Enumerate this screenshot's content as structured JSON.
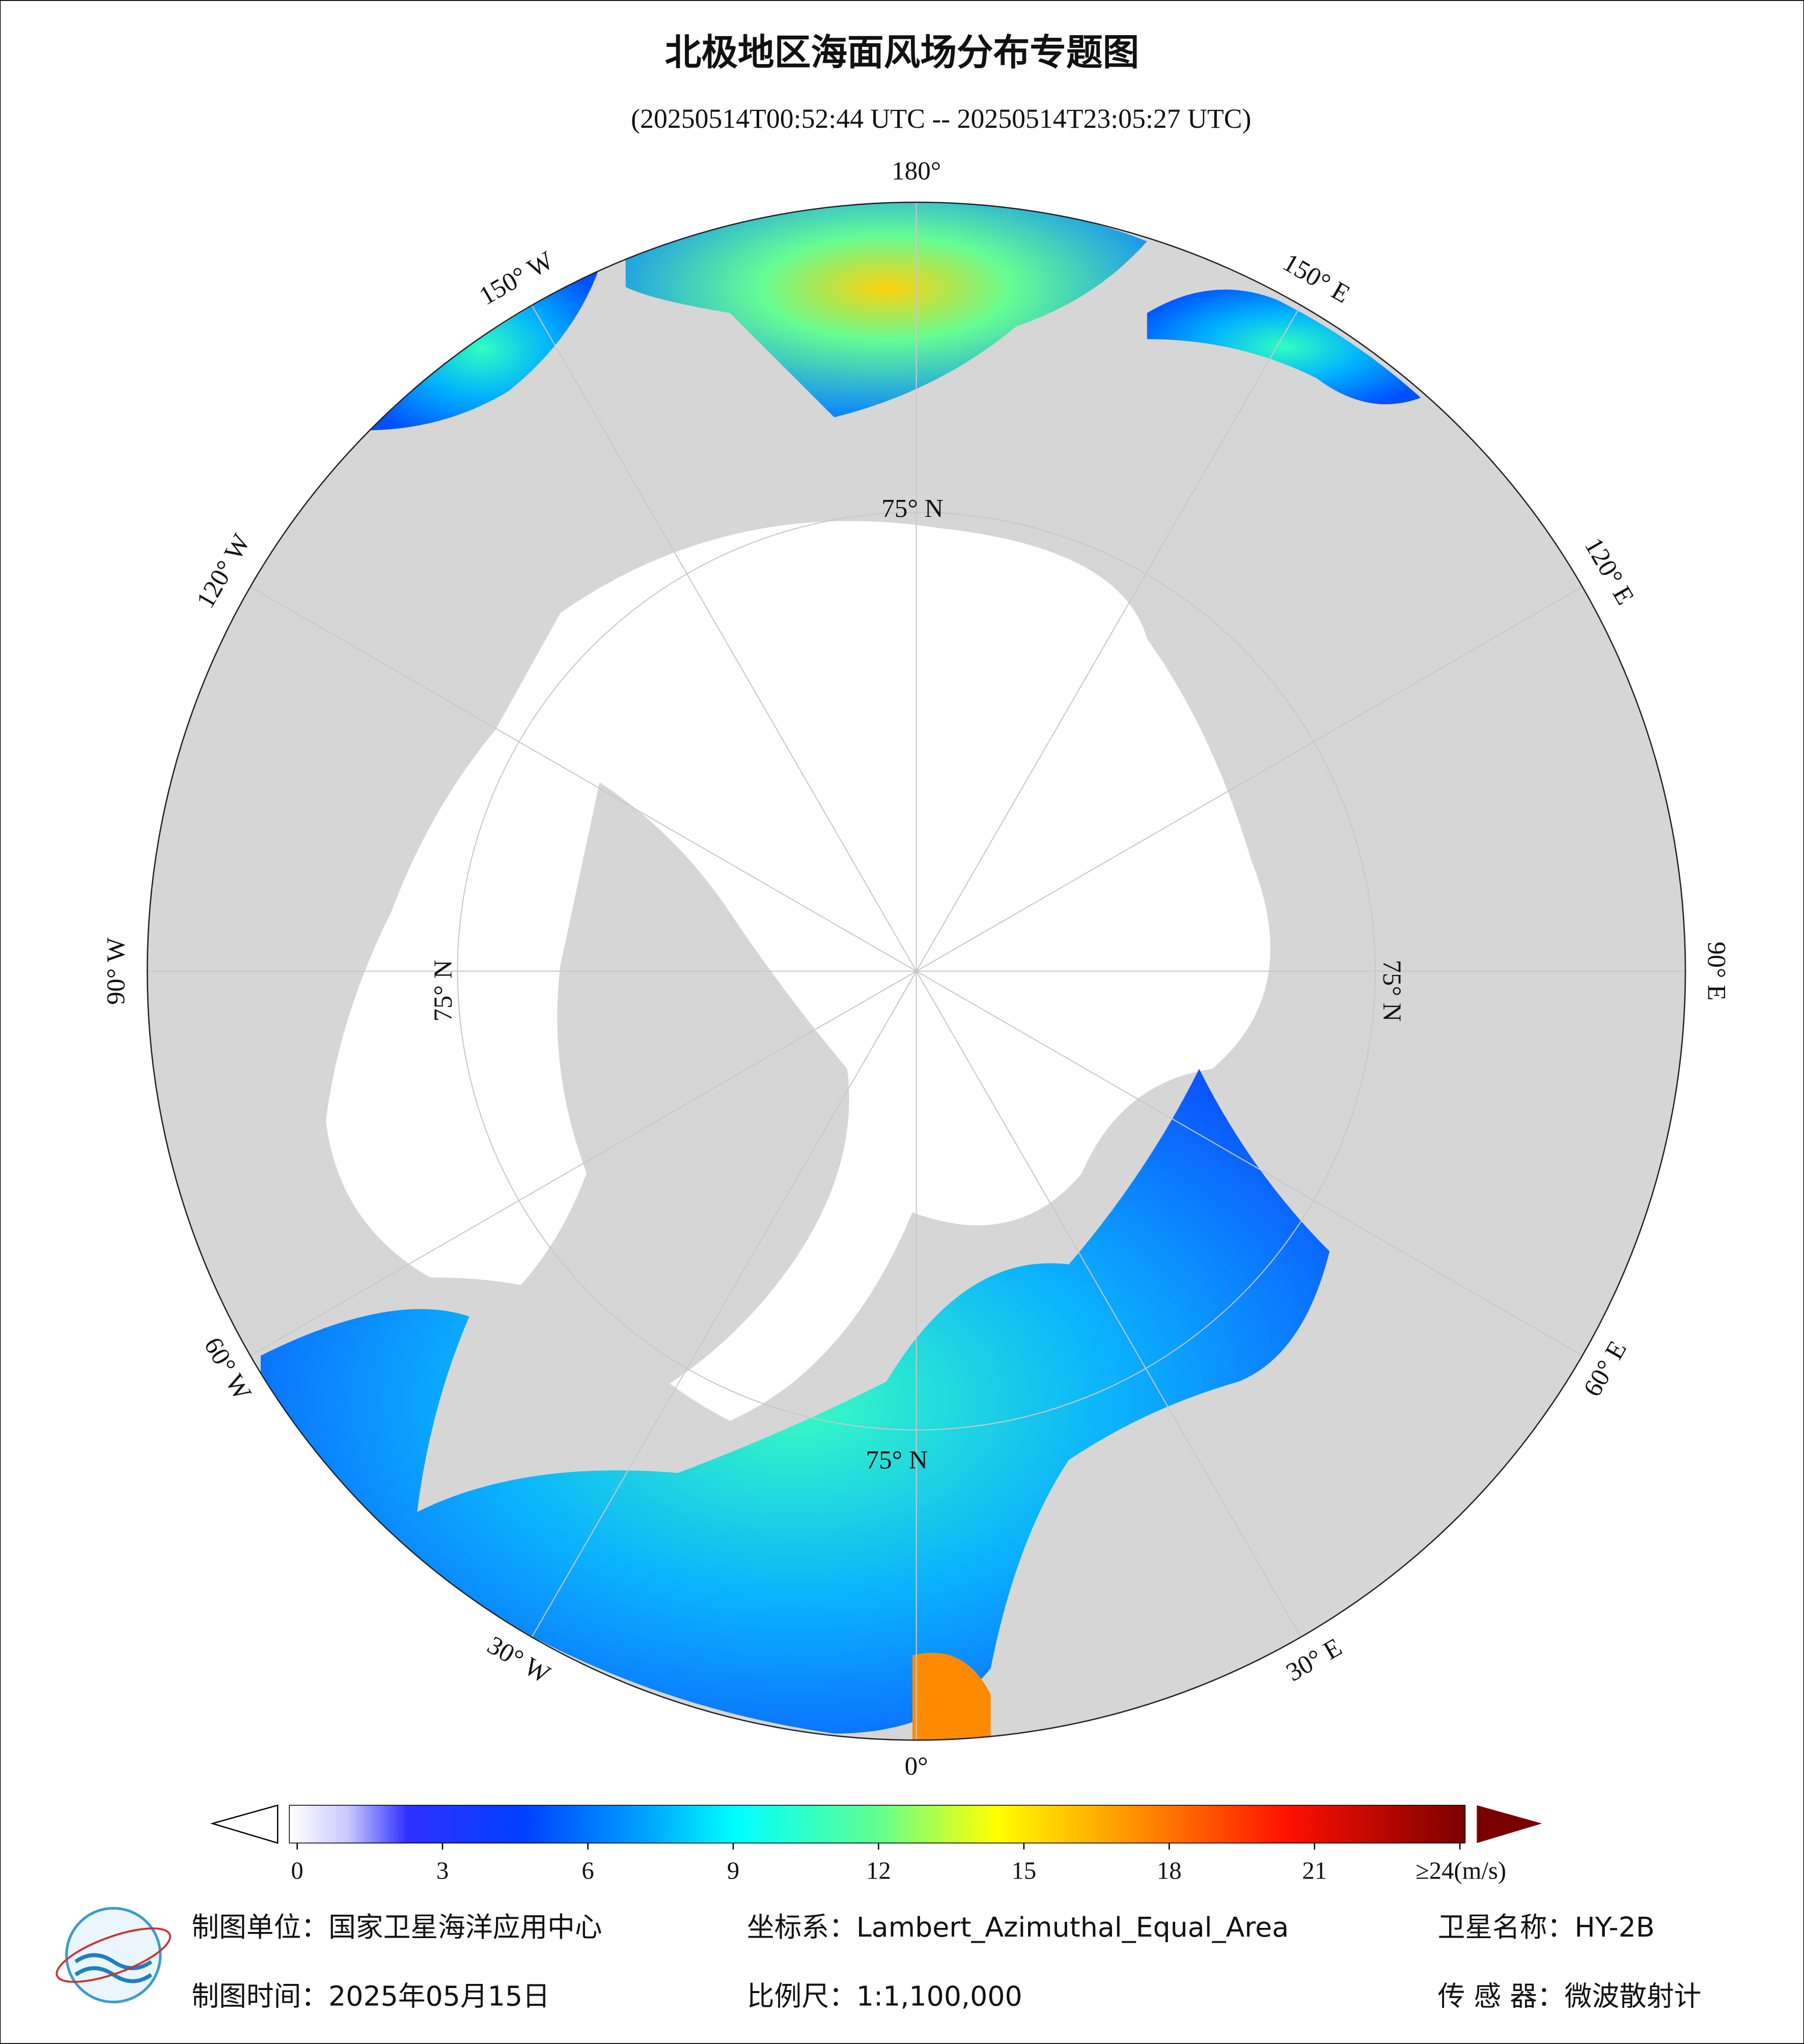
{
  "header": {
    "title": "北极地区海面风场分布专题图",
    "subtitle": "(20250514T00:52:44 UTC -- 20250514T23:05:27 UTC)"
  },
  "map": {
    "lon_labels": [
      "180°",
      "150° E",
      "120° E",
      "90° E",
      "60° E",
      "30° E",
      "0°",
      "30° W",
      "60° W",
      "90° W",
      "120° W",
      "150° W"
    ],
    "lat_labels": [
      "75° N",
      "75° N",
      "75° N",
      "75° N"
    ]
  },
  "colorbar": {
    "ticks": [
      0,
      3,
      6,
      9,
      12,
      15,
      18,
      21,
      {
        "value": 24,
        "label": "≥24(m/s)"
      }
    ],
    "range": [
      0,
      24
    ]
  },
  "footer": {
    "unit": "制图单位：国家卫星海洋应用中心",
    "crs": "坐标系：Lambert_Azimuthal_Equal_Area",
    "satellite": "卫星名称：HY-2B",
    "date": "制图时间：2025年05月15日",
    "scale": "比例尺：1:1,100,000",
    "sensor": "传 感 器：微波散射计"
  }
}
